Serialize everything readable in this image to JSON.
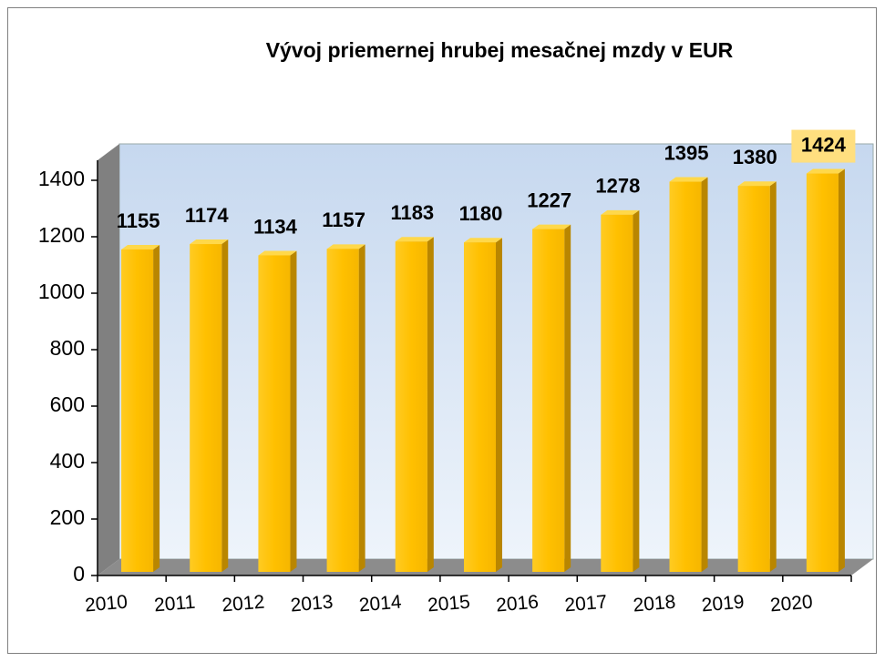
{
  "chart_data": {
    "type": "bar",
    "title": "Vývoj priemernej hrubej mesačnej mzdy v EUR",
    "categories": [
      "2010",
      "2011",
      "2012",
      "2013",
      "2014",
      "2015",
      "2016",
      "2017",
      "2018",
      "2019",
      "2020"
    ],
    "values": [
      1155,
      1174,
      1134,
      1157,
      1183,
      1180,
      1227,
      1278,
      1395,
      1380,
      1424
    ],
    "color": "#ffc000",
    "ylim": [
      0,
      1400
    ],
    "yticks": [
      0,
      200,
      400,
      600,
      800,
      1000,
      1200,
      1400
    ],
    "grid": false,
    "highlight_index": 10,
    "highlight_color": "#ffdf7f"
  }
}
